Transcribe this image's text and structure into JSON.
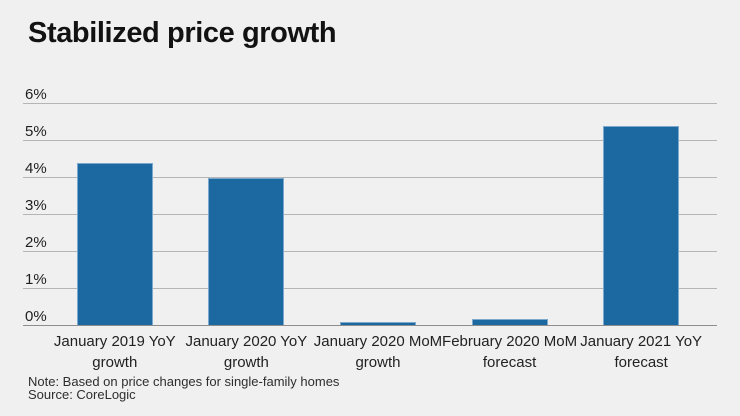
{
  "chart_data": {
    "type": "bar",
    "title": "Stabilized price growth",
    "categories": [
      "January 2019 YoY\ngrowth",
      "January 2020 YoY\ngrowth",
      "January 2020 MoM\ngrowth",
      "February 2020 MoM\nforecast",
      "January 2021 YoY\nforecast"
    ],
    "values": [
      4.4,
      4.0,
      0.1,
      0.2,
      5.4
    ],
    "xlabel": "",
    "ylabel": "",
    "ylim": [
      0,
      6
    ],
    "yticks": [
      0,
      1,
      2,
      3,
      4,
      5,
      6
    ],
    "ytick_labels": [
      "0%",
      "1%",
      "2%",
      "3%",
      "4%",
      "5%",
      "6%"
    ],
    "grid": true,
    "legend": "none",
    "bar_color": "#1c69a2",
    "bar_edge_color": "#7ca8cd",
    "gridline_color": "#b4b5b5",
    "baseline_color": "#8c8d8d",
    "background": "#eff0ef"
  },
  "footer": {
    "note": "Note: Based on price changes for single-family homes",
    "source": "Source: CoreLogic"
  }
}
